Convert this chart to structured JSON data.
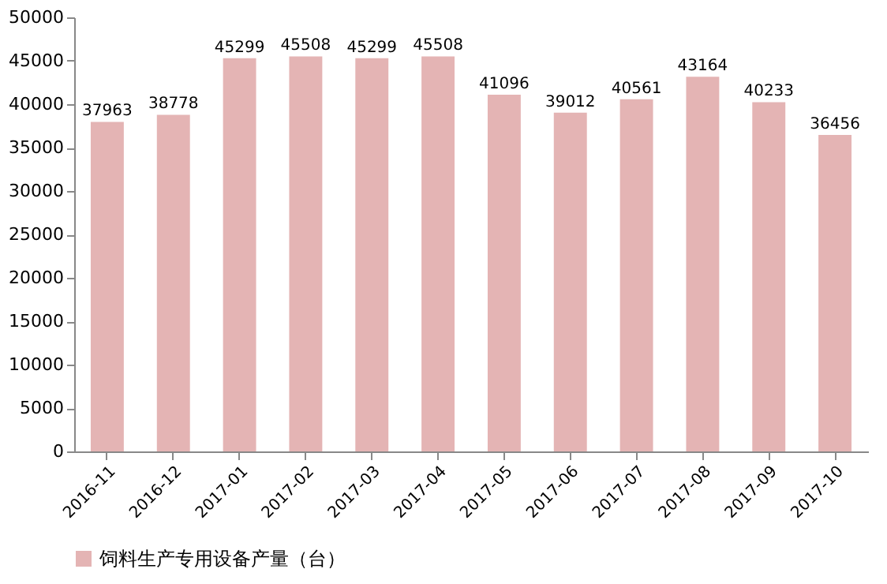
{
  "chart_data": {
    "type": "bar",
    "categories": [
      "2016-11",
      "2016-12",
      "2017-01",
      "2017-02",
      "2017-03",
      "2017-04",
      "2017-05",
      "2017-06",
      "2017-07",
      "2017-08",
      "2017-09",
      "2017-10"
    ],
    "series": [
      {
        "name": "饲料生产专用设备产量（台）",
        "color": "#e4b4b4",
        "values": [
          37963,
          38778,
          45299,
          45508,
          45299,
          45508,
          41096,
          39012,
          40561,
          43164,
          40233,
          36456
        ]
      }
    ],
    "ylim": [
      0,
      50000
    ],
    "yticks": [
      0,
      5000,
      10000,
      15000,
      20000,
      25000,
      30000,
      35000,
      40000,
      45000,
      50000
    ],
    "grid": false,
    "legend": "bottom",
    "data_labels": true
  }
}
